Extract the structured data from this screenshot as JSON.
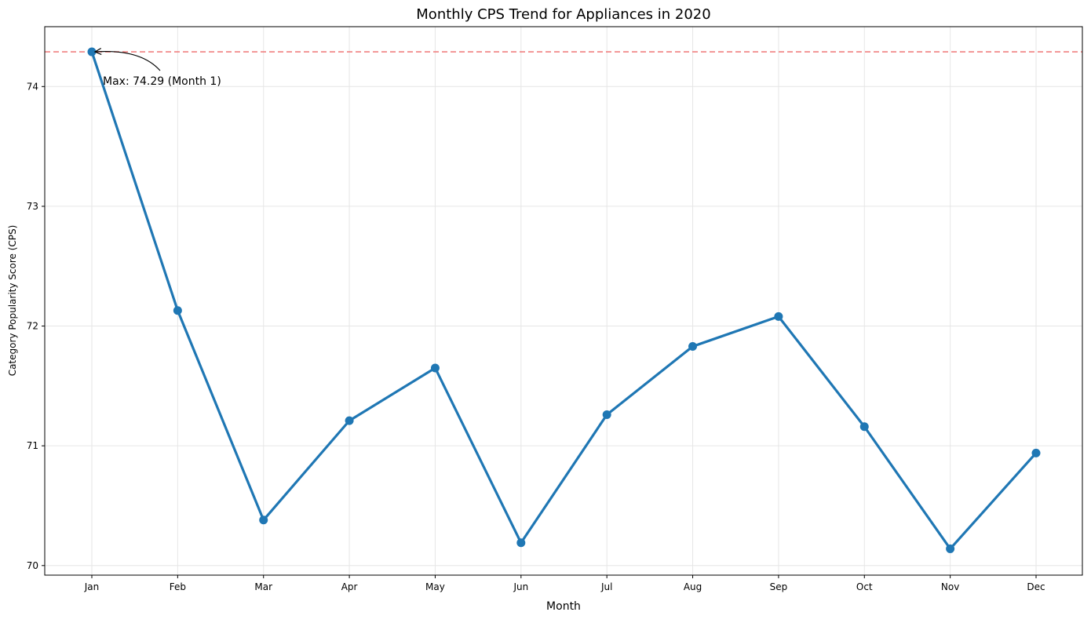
{
  "chart_data": {
    "type": "line",
    "title": "Monthly CPS Trend for Appliances in 2020",
    "xlabel": "Month",
    "ylabel": "Category Popularity Score (CPS)",
    "categories": [
      "Jan",
      "Feb",
      "Mar",
      "Apr",
      "May",
      "Jun",
      "Jul",
      "Aug",
      "Sep",
      "Oct",
      "Nov",
      "Dec"
    ],
    "series": [
      {
        "values": [
          74.29,
          72.13,
          70.38,
          71.21,
          71.65,
          70.19,
          71.26,
          71.83,
          72.08,
          71.16,
          70.14,
          70.94
        ]
      }
    ],
    "ylim": [
      69.92,
      74.5
    ],
    "yticks": [
      70,
      71,
      72,
      73,
      74
    ],
    "grid": true,
    "reference_line": {
      "value": 74.29,
      "style": "dashed",
      "color": "#f08080"
    },
    "annotation": {
      "text": "Max: 74.29 (Month 1)",
      "category": "Jan",
      "value": 74.29
    },
    "colors": {
      "line": "#1f77b4",
      "grid": "#e6e6e6",
      "reference": "#f08080"
    }
  }
}
